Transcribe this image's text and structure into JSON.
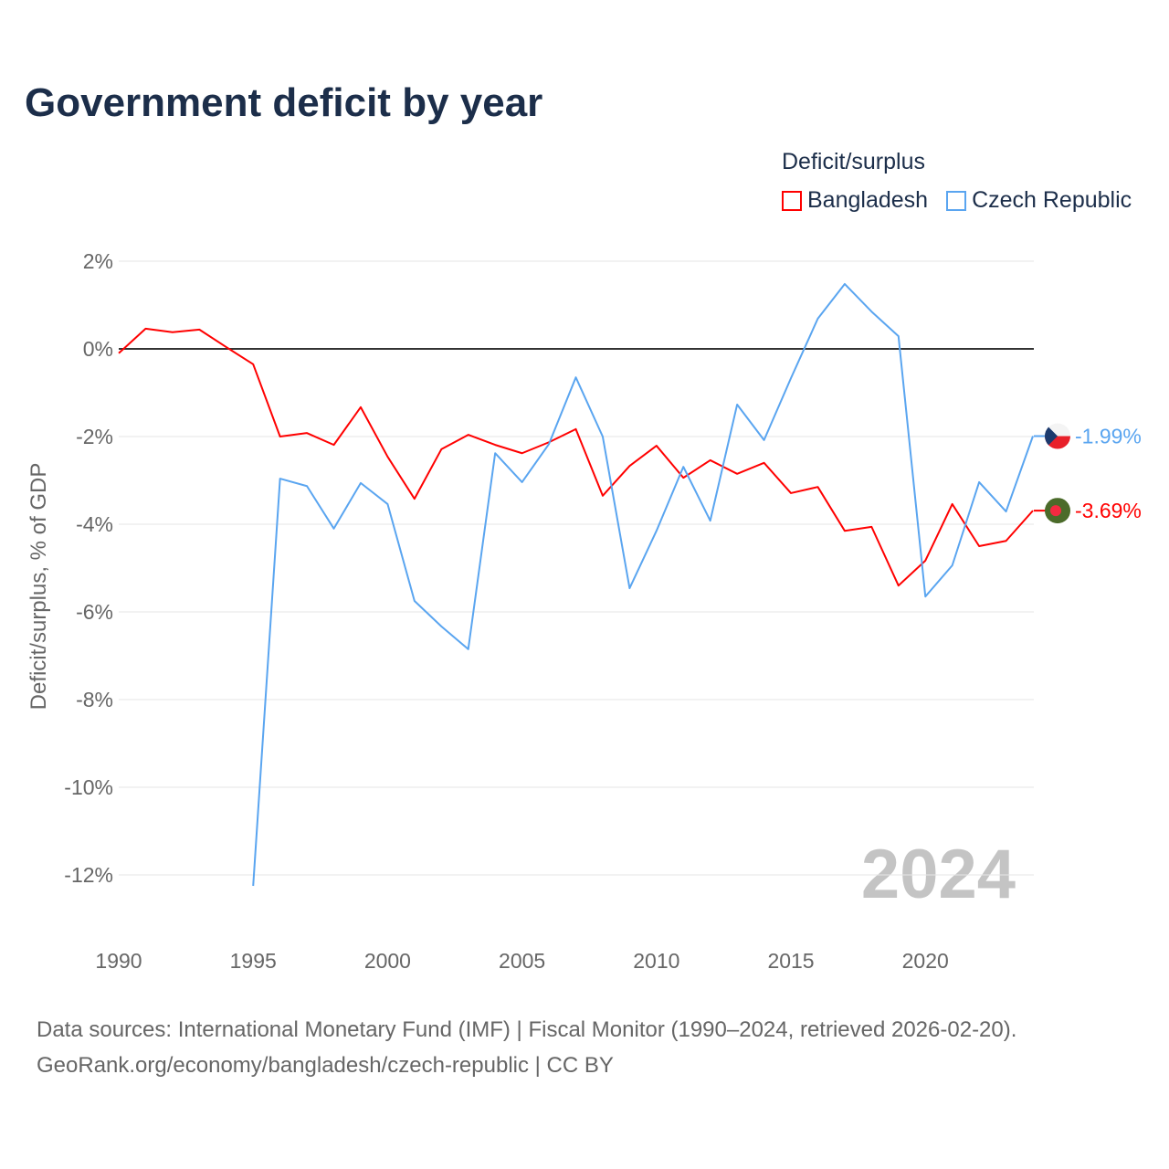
{
  "title": "Government deficit by year",
  "legend": {
    "title": "Deficit/surplus",
    "items": [
      {
        "label": "Bangladesh",
        "color": "#ff0000"
      },
      {
        "label": "Czech Republic",
        "color": "#5aa5f0"
      }
    ]
  },
  "chart_data": {
    "type": "line",
    "title": "Government deficit by year",
    "xlabel": "",
    "ylabel": "Deficit/surplus, % of GDP",
    "xlim": [
      1990,
      2024
    ],
    "ylim": [
      -12.5,
      2
    ],
    "x_ticks": [
      "1990",
      "1995",
      "2000",
      "2005",
      "2010",
      "2015",
      "2020"
    ],
    "y_ticks": [
      {
        "v": 2,
        "label": "2%"
      },
      {
        "v": 0,
        "label": "0%"
      },
      {
        "v": -2,
        "label": "-2%"
      },
      {
        "v": -4,
        "label": "-4%"
      },
      {
        "v": -6,
        "label": "-6%"
      },
      {
        "v": -8,
        "label": "-8%"
      },
      {
        "v": -10,
        "label": "-10%"
      },
      {
        "v": -12,
        "label": "-12%"
      }
    ],
    "year_watermark": "2024",
    "series": [
      {
        "name": "Bangladesh",
        "color": "#ff0000",
        "end_label": "-3.69%",
        "start_year": 1990,
        "values": [
          -0.1,
          0.46,
          0.38,
          0.44,
          0.04,
          -0.35,
          -2.0,
          -1.92,
          -2.19,
          -1.33,
          -2.46,
          -3.42,
          -2.29,
          -1.96,
          -2.19,
          -2.38,
          -2.13,
          -1.83,
          -3.35,
          -2.67,
          -2.21,
          -2.94,
          -2.54,
          -2.85,
          -2.6,
          -3.29,
          -3.15,
          -4.15,
          -4.06,
          -5.4,
          -4.83,
          -3.54,
          -4.5,
          -4.38,
          -3.69
        ]
      },
      {
        "name": "Czech Republic",
        "color": "#5aa5f0",
        "end_label": "-1.99%",
        "start_year": 1995,
        "values": [
          -12.25,
          -2.96,
          -3.13,
          -4.1,
          -3.06,
          -3.54,
          -5.75,
          -6.33,
          -6.85,
          -2.38,
          -3.04,
          -2.17,
          -0.65,
          -2.0,
          -5.46,
          -4.15,
          -2.69,
          -3.92,
          -1.27,
          -2.08,
          -0.67,
          0.69,
          1.48,
          0.85,
          0.29,
          -5.65,
          -4.94,
          -3.04,
          -3.71,
          -1.99
        ]
      }
    ]
  },
  "source": {
    "line1": "Data sources: International Monetary Fund (IMF) | Fiscal Monitor (1990–2024, retrieved 2026-02-20).",
    "line2": "GeoRank.org/economy/bangladesh/czech-republic | CC BY"
  }
}
